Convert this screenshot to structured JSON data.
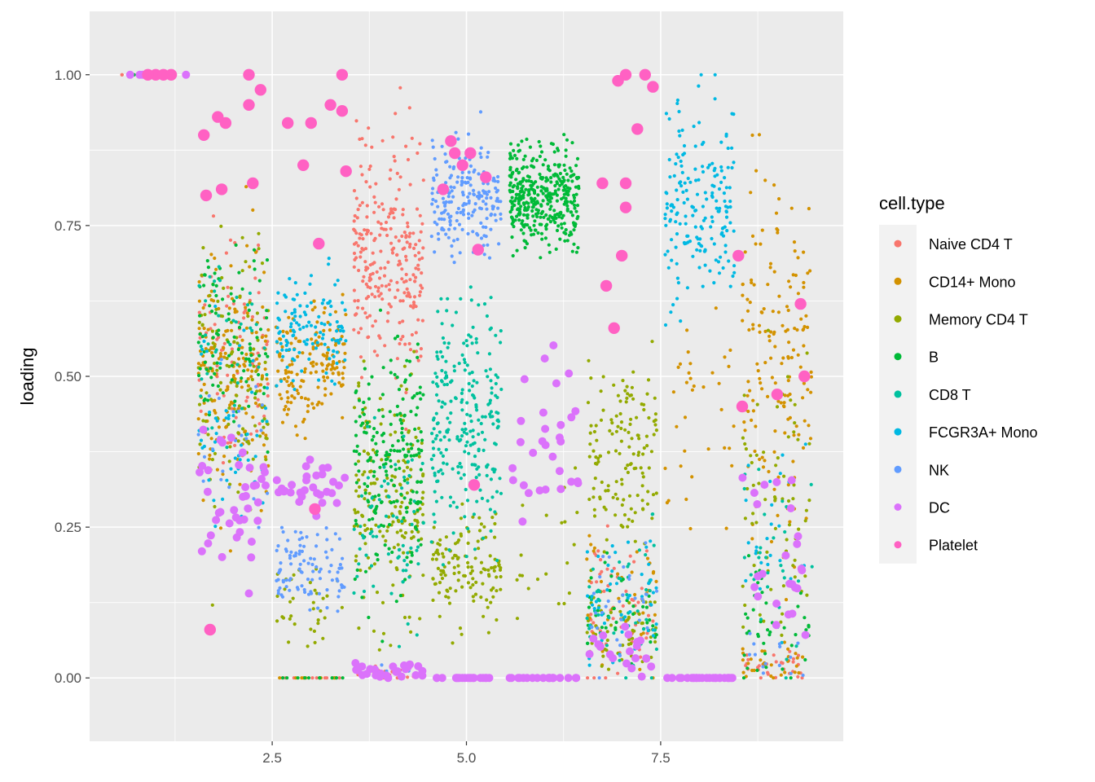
{
  "chart_data": {
    "type": "scatter",
    "title": "",
    "xlabel": "",
    "ylabel": "loading",
    "xlim": [
      0.15,
      9.85
    ],
    "ylim": [
      -0.105,
      1.105
    ],
    "x_ticks": [
      2.5,
      5.0,
      7.5
    ],
    "x_tick_labels": [
      "2.5",
      "5.0",
      "7.5"
    ],
    "y_ticks": [
      0.0,
      0.25,
      0.5,
      0.75,
      1.0
    ],
    "y_tick_labels": [
      "0.00",
      "0.25",
      "0.50",
      "0.75",
      "1.00"
    ],
    "grid": true,
    "jitter_width": 0.45,
    "legend": {
      "title": "cell.type",
      "position": "right",
      "entries": [
        {
          "name": "Naive CD4 T",
          "color": "#F8766D"
        },
        {
          "name": "CD14+ Mono",
          "color": "#D39200"
        },
        {
          "name": "Memory CD4 T",
          "color": "#93AA00"
        },
        {
          "name": "B",
          "color": "#00BA38"
        },
        {
          "name": "CD8 T",
          "color": "#00C19F"
        },
        {
          "name": "FCGR3A+ Mono",
          "color": "#00B9E3"
        },
        {
          "name": "NK",
          "color": "#619CFF"
        },
        {
          "name": "DC",
          "color": "#DB72FB"
        },
        {
          "name": "Platelet",
          "color": "#FF61C3"
        }
      ]
    },
    "panel_background": "#EBEBEB",
    "gridline_color": "#FFFFFF",
    "series": [
      {
        "name": "Naive CD4 T",
        "color": "#F8766D",
        "point_size": "small",
        "clusters": [
          {
            "x": 1,
            "y_center": 1.0,
            "y_spread": 0.0,
            "n": 8
          },
          {
            "x": 2,
            "y_center": 0.52,
            "y_spread": 0.15,
            "n": 90
          },
          {
            "x": 3,
            "y_center": 0.0,
            "y_spread": 0.0,
            "n": 10
          },
          {
            "x": 4,
            "y_center": 0.7,
            "y_spread": 0.14,
            "n": 260
          },
          {
            "x": 4,
            "y_center": 0.01,
            "y_spread": 0.01,
            "n": 20
          },
          {
            "x": 7,
            "y_center": 0.12,
            "y_spread": 0.09,
            "n": 60
          },
          {
            "x": 9,
            "y_center": 0.02,
            "y_spread": 0.02,
            "n": 30
          }
        ]
      },
      {
        "name": "CD14+ Mono",
        "color": "#D39200",
        "point_size": "small",
        "clusters": [
          {
            "x": 2,
            "y_center": 0.5,
            "y_spread": 0.14,
            "n": 170
          },
          {
            "x": 3,
            "y_center": 0.52,
            "y_spread": 0.07,
            "n": 160
          },
          {
            "x": 3,
            "y_center": 0.0,
            "y_spread": 0.0,
            "n": 10
          },
          {
            "x": 7,
            "y_center": 0.12,
            "y_spread": 0.09,
            "n": 40
          },
          {
            "x": 8,
            "y_center": 0.45,
            "y_spread": 0.12,
            "n": 35
          },
          {
            "x": 9,
            "y_center": 0.55,
            "y_spread": 0.2,
            "n": 160
          },
          {
            "x": 9,
            "y_center": 0.02,
            "y_spread": 0.02,
            "n": 30
          }
        ]
      },
      {
        "name": "Memory CD4 T",
        "color": "#93AA00",
        "point_size": "small",
        "clusters": [
          {
            "x": 2,
            "y_center": 0.5,
            "y_spread": 0.15,
            "n": 110
          },
          {
            "x": 3,
            "y_center": 0.1,
            "y_spread": 0.05,
            "n": 35
          },
          {
            "x": 4,
            "y_center": 0.3,
            "y_spread": 0.14,
            "n": 180
          },
          {
            "x": 5,
            "y_center": 0.18,
            "y_spread": 0.06,
            "n": 130
          },
          {
            "x": 6,
            "y_center": 0.2,
            "y_spread": 0.08,
            "n": 20
          },
          {
            "x": 7,
            "y_center": 0.38,
            "y_spread": 0.1,
            "n": 140
          },
          {
            "x": 7,
            "y_center": 0.08,
            "y_spread": 0.05,
            "n": 60
          },
          {
            "x": 9,
            "y_center": 0.3,
            "y_spread": 0.15,
            "n": 70
          }
        ]
      },
      {
        "name": "B",
        "color": "#00BA38",
        "point_size": "small",
        "clusters": [
          {
            "x": 1,
            "y_center": 1.0,
            "y_spread": 0.0,
            "n": 6
          },
          {
            "x": 2,
            "y_center": 0.58,
            "y_spread": 0.12,
            "n": 90
          },
          {
            "x": 3,
            "y_center": 0.0,
            "y_spread": 0.0,
            "n": 10
          },
          {
            "x": 4,
            "y_center": 0.35,
            "y_spread": 0.14,
            "n": 200
          },
          {
            "x": 6,
            "y_center": 0.8,
            "y_spread": 0.06,
            "n": 380
          },
          {
            "x": 6,
            "y_center": 0.0,
            "y_spread": 0.0,
            "n": 10
          },
          {
            "x": 7,
            "y_center": 0.1,
            "y_spread": 0.06,
            "n": 40
          },
          {
            "x": 9,
            "y_center": 0.1,
            "y_spread": 0.08,
            "n": 40
          }
        ]
      },
      {
        "name": "CD8 T",
        "color": "#00C19F",
        "point_size": "small",
        "clusters": [
          {
            "x": 2,
            "y_center": 0.55,
            "y_spread": 0.12,
            "n": 40
          },
          {
            "x": 4,
            "y_center": 0.25,
            "y_spread": 0.12,
            "n": 70
          },
          {
            "x": 5,
            "y_center": 0.42,
            "y_spread": 0.13,
            "n": 250
          },
          {
            "x": 7,
            "y_center": 0.12,
            "y_spread": 0.09,
            "n": 50
          },
          {
            "x": 9,
            "y_center": 0.2,
            "y_spread": 0.1,
            "n": 30
          }
        ]
      },
      {
        "name": "FCGR3A+ Mono",
        "color": "#00B9E3",
        "point_size": "small",
        "clusters": [
          {
            "x": 2,
            "y_center": 0.42,
            "y_spread": 0.12,
            "n": 50
          },
          {
            "x": 3,
            "y_center": 0.58,
            "y_spread": 0.06,
            "n": 120
          },
          {
            "x": 7,
            "y_center": 0.12,
            "y_spread": 0.09,
            "n": 50
          },
          {
            "x": 8,
            "y_center": 0.78,
            "y_spread": 0.12,
            "n": 190
          },
          {
            "x": 9,
            "y_center": 0.25,
            "y_spread": 0.1,
            "n": 25
          }
        ]
      },
      {
        "name": "NK",
        "color": "#619CFF",
        "point_size": "small",
        "clusters": [
          {
            "x": 2,
            "y_center": 0.38,
            "y_spread": 0.1,
            "n": 25
          },
          {
            "x": 3,
            "y_center": 0.18,
            "y_spread": 0.05,
            "n": 100
          },
          {
            "x": 4,
            "y_center": 0.01,
            "y_spread": 0.01,
            "n": 10
          },
          {
            "x": 5,
            "y_center": 0.8,
            "y_spread": 0.07,
            "n": 200
          },
          {
            "x": 7,
            "y_center": 0.12,
            "y_spread": 0.09,
            "n": 30
          },
          {
            "x": 9,
            "y_center": 0.05,
            "y_spread": 0.04,
            "n": 15
          }
        ]
      },
      {
        "name": "DC",
        "color": "#DB72FB",
        "point_size": "medium",
        "clusters": [
          {
            "x": 1,
            "y_center": 1.0,
            "y_spread": 0.0,
            "n": 10
          },
          {
            "x": 2,
            "y_center": 0.3,
            "y_spread": 0.08,
            "n": 40
          },
          {
            "x": 3,
            "y_center": 0.32,
            "y_spread": 0.03,
            "n": 30
          },
          {
            "x": 4,
            "y_center": 0.01,
            "y_spread": 0.01,
            "n": 25
          },
          {
            "x": 5,
            "y_center": 0.0,
            "y_spread": 0.0,
            "n": 20
          },
          {
            "x": 6,
            "y_center": 0.4,
            "y_spread": 0.1,
            "n": 30
          },
          {
            "x": 6,
            "y_center": 0.0,
            "y_spread": 0.0,
            "n": 20
          },
          {
            "x": 7,
            "y_center": 0.05,
            "y_spread": 0.03,
            "n": 20
          },
          {
            "x": 8,
            "y_center": 0.0,
            "y_spread": 0.0,
            "n": 25
          },
          {
            "x": 9,
            "y_center": 0.2,
            "y_spread": 0.12,
            "n": 25
          }
        ]
      },
      {
        "name": "Platelet",
        "color": "#FF61C3",
        "point_size": "large",
        "points": [
          [
            1.0,
            1.0
          ],
          [
            1.1,
            1.0
          ],
          [
            0.9,
            1.0
          ],
          [
            1.2,
            1.0
          ],
          [
            1.62,
            0.9
          ],
          [
            1.9,
            0.92
          ],
          [
            2.2,
            1.0
          ],
          [
            2.35,
            0.975
          ],
          [
            2.2,
            0.95
          ],
          [
            1.8,
            0.93
          ],
          [
            2.25,
            0.82
          ],
          [
            1.85,
            0.81
          ],
          [
            1.65,
            0.8
          ],
          [
            1.7,
            0.08
          ],
          [
            2.7,
            0.92
          ],
          [
            3.0,
            0.92
          ],
          [
            3.25,
            0.95
          ],
          [
            3.4,
            0.94
          ],
          [
            2.9,
            0.85
          ],
          [
            3.45,
            0.84
          ],
          [
            3.1,
            0.72
          ],
          [
            3.4,
            1.0
          ],
          [
            3.05,
            0.28
          ],
          [
            4.8,
            0.89
          ],
          [
            4.85,
            0.87
          ],
          [
            5.05,
            0.87
          ],
          [
            4.95,
            0.85
          ],
          [
            5.25,
            0.83
          ],
          [
            5.15,
            0.71
          ],
          [
            4.7,
            0.81
          ],
          [
            5.1,
            0.32
          ],
          [
            7.05,
            1.0
          ],
          [
            6.95,
            0.99
          ],
          [
            7.3,
            1.0
          ],
          [
            7.4,
            0.98
          ],
          [
            7.2,
            0.91
          ],
          [
            6.75,
            0.82
          ],
          [
            7.05,
            0.82
          ],
          [
            7.05,
            0.78
          ],
          [
            6.9,
            0.58
          ],
          [
            6.8,
            0.65
          ],
          [
            7.0,
            0.7
          ],
          [
            8.5,
            0.7
          ],
          [
            8.55,
            0.45
          ],
          [
            9.0,
            0.47
          ],
          [
            9.35,
            0.5
          ],
          [
            9.3,
            0.62
          ]
        ]
      }
    ]
  }
}
